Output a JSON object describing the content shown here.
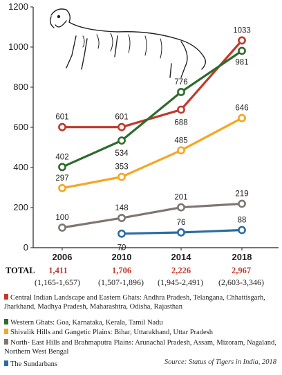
{
  "chart_data": {
    "type": "line",
    "title": "",
    "xlabel": "",
    "ylabel": "",
    "x": [
      "2006",
      "2010",
      "2014",
      "2018"
    ],
    "ylim": [
      0,
      1200
    ],
    "yticks": [
      "0",
      "200",
      "400",
      "600",
      "800",
      "1000",
      "1200"
    ],
    "grid": false,
    "legend_position": "bottom",
    "series": [
      {
        "name": "Central Indian Landscape and Eastern Ghats: Andhra Pradesh, Telangana, Chhattisgarh, Jharkhand, Madhya Pradesh, Maharashtra, Odisha, Rajasthan",
        "color": "#c0392b",
        "values": [
          601,
          601,
          688,
          1033
        ],
        "labels": [
          "601",
          "601",
          "688",
          "1033"
        ]
      },
      {
        "name": "Western Ghats: Goa, Karnataka, Kerala, Tamil Nadu",
        "color": "#2e6b2e",
        "values": [
          402,
          534,
          776,
          981
        ],
        "labels": [
          "402",
          "534",
          "776",
          "981"
        ]
      },
      {
        "name": "Shivalik Hills and Gangetic Plains: Bihar, Uttarakhand, Uttar Pradesh",
        "color": "#f5a623",
        "values": [
          297,
          353,
          485,
          646
        ],
        "labels": [
          "297",
          "353",
          "485",
          "646"
        ]
      },
      {
        "name": "North- East Hills and Brahmaputra Plains: Arunachal Pradesh, Assam, Mizoram, Nagaland, Northern West Bengal",
        "color": "#7f7671",
        "values": [
          100,
          148,
          201,
          219
        ],
        "labels": [
          "100",
          "148",
          "201",
          "219"
        ]
      },
      {
        "name": "The Sundarbans",
        "color": "#2b6ca3",
        "values": [
          null,
          70,
          76,
          88
        ],
        "labels": [
          "",
          "70",
          "76",
          "88"
        ]
      }
    ]
  },
  "totals": {
    "label": "TOTAL",
    "values": [
      "1,411",
      "1,706",
      "2,226",
      "2,967"
    ],
    "ranges": [
      "(1,165-1,657)",
      "(1,507-1,896)",
      "(1,945-2,491)",
      "(2,603-3,346)"
    ],
    "color": "#c0392b"
  },
  "legend_items": [
    {
      "text": "Central Indian Landscape and Eastern Ghats: Andhra Pradesh, Telangana, Chhattisgarh, Jharkhand, Madhya Pradesh, Maharashtra, Odisha, Rajasthan",
      "color": "#c0392b"
    },
    {
      "text": "Western Ghats: Goa, Karnataka, Kerala, Tamil Nadu",
      "color": "#2e6b2e"
    },
    {
      "text": "Shivalik Hills and Gangetic Plains: Bihar, Uttarakhand, Uttar Pradesh",
      "color": "#f5a623"
    },
    {
      "text": "North- East Hills and Brahmaputra Plains: Arunachal Pradesh, Assam, Mizoram, Nagaland, Northern West Bengal",
      "color": "#7f7671"
    },
    {
      "text": "The Sundarbans",
      "color": "#2b6ca3"
    }
  ],
  "source": {
    "prefix": "Source: ",
    "title": "Status of Tigers in India, 2018"
  }
}
